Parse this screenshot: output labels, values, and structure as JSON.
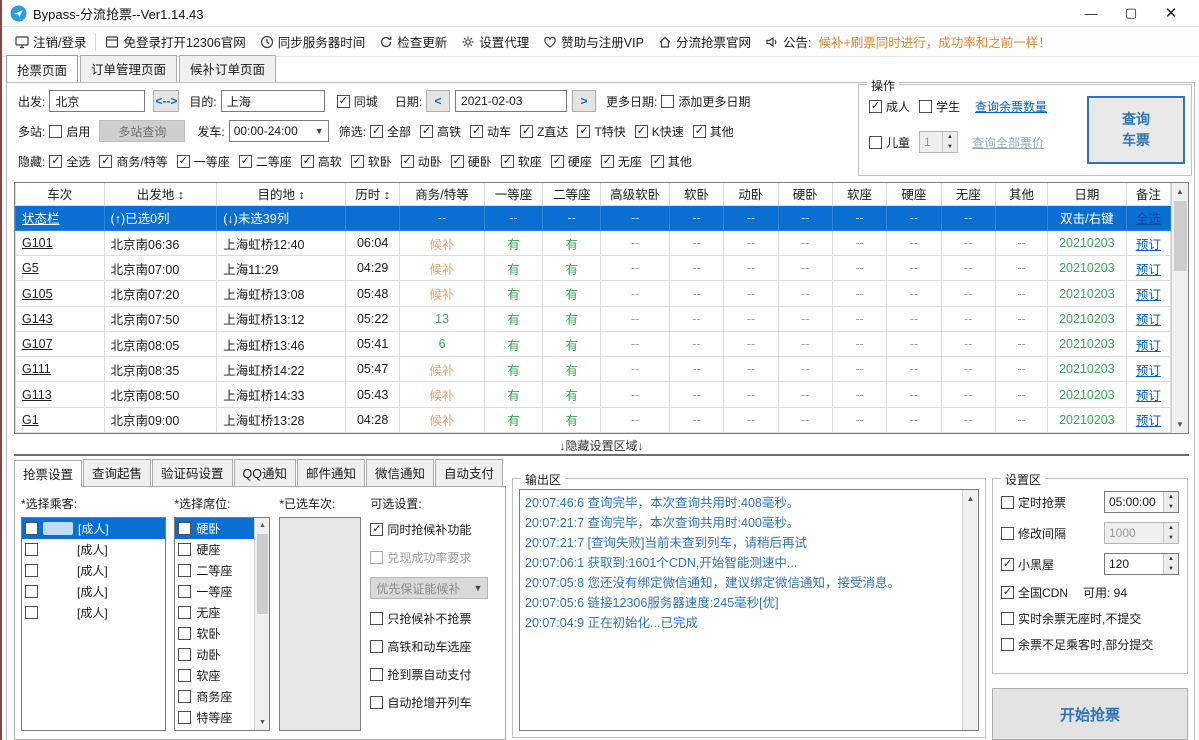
{
  "window": {
    "title": "Bypass-分流抢票--Ver1.14.43"
  },
  "toolbar": {
    "items": [
      {
        "label": "注销/登录",
        "icon": "monitor-icon"
      },
      {
        "label": "免登录打开12306官网",
        "icon": "window-icon"
      },
      {
        "label": "同步服务器时间",
        "icon": "clock-icon"
      },
      {
        "label": "检查更新",
        "icon": "refresh-icon"
      },
      {
        "label": "设置代理",
        "icon": "gear-icon"
      },
      {
        "label": "赞助与注册VIP",
        "icon": "heart-icon"
      },
      {
        "label": "分流抢票官网",
        "icon": "home-icon"
      },
      {
        "label": "公告:",
        "icon": "speaker-icon"
      }
    ],
    "announcement": "候补+刷票同时进行，成功率和之前一样！",
    "announcement_color": "#e8842c"
  },
  "main_tabs": [
    {
      "label": "抢票页面",
      "active": true
    },
    {
      "label": "订单管理页面",
      "active": false
    },
    {
      "label": "候补订单页面",
      "active": false
    }
  ],
  "query": {
    "depart_label": "出发:",
    "depart_value": "北京",
    "swap_label": "<-->",
    "dest_label": "目的:",
    "dest_value": "上海",
    "same_city": {
      "label": "同城",
      "checked": true
    },
    "date_label": "日期:",
    "prev": "<",
    "date_value": "2021-02-03",
    "next": ">",
    "more_dates_label": "更多日期:",
    "add_more_dates": {
      "label": "添加更多日期",
      "checked": false
    },
    "multi_label": "多站:",
    "enable": {
      "label": "启用",
      "checked": false
    },
    "multi_btn": "多站查询",
    "depart_time_label": "发车:",
    "depart_time_value": "00:00-24:00",
    "filter_label": "筛选:",
    "filters": [
      {
        "label": "全部",
        "checked": true
      },
      {
        "label": "高铁",
        "checked": true
      },
      {
        "label": "动车",
        "checked": true
      },
      {
        "label": "Z直达",
        "checked": true
      },
      {
        "label": "T特快",
        "checked": true
      },
      {
        "label": "K快速",
        "checked": true
      },
      {
        "label": "其他",
        "checked": true
      }
    ],
    "hide_label": "隐藏:",
    "hide": [
      {
        "label": "全选",
        "checked": true
      },
      {
        "label": "商务/特等",
        "checked": true
      },
      {
        "label": "一等座",
        "checked": true
      },
      {
        "label": "二等座",
        "checked": true
      },
      {
        "label": "高软",
        "checked": true
      },
      {
        "label": "软卧",
        "checked": true
      },
      {
        "label": "动卧",
        "checked": true
      },
      {
        "label": "硬卧",
        "checked": true
      },
      {
        "label": "软座",
        "checked": true
      },
      {
        "label": "硬座",
        "checked": true
      },
      {
        "label": "无座",
        "checked": true
      },
      {
        "label": "其他",
        "checked": true
      }
    ]
  },
  "operation": {
    "title": "操作",
    "adult": {
      "label": "成人",
      "checked": true
    },
    "student": {
      "label": "学生",
      "checked": false
    },
    "child": {
      "label": "儿童",
      "checked": false
    },
    "child_count": "1",
    "link_tickets": "查询余票数量",
    "link_prices": "查询全部票价",
    "query_button_line1": "查询",
    "query_button_line2": "车票"
  },
  "train_table": {
    "headers": [
      "车次",
      "出发地 ↕",
      "目的地 ↕",
      "历时 ↕",
      "商务/特等",
      "一等座",
      "二等座",
      "高级软卧",
      "软卧",
      "动卧",
      "硬卧",
      "软座",
      "硬座",
      "无座",
      "其他",
      "日期",
      "备注"
    ],
    "status_row": [
      "状态栏",
      "(↑)已选0列",
      "(↓)未选39列",
      "",
      "--",
      "--",
      "--",
      "--",
      "--",
      "--",
      "--",
      "--",
      "--",
      "--",
      "",
      "双击/右键",
      "全选"
    ],
    "rows": [
      [
        "G101",
        "北京南06:36",
        "上海虹桥12:40",
        "06:04",
        "候补",
        "有",
        "有",
        "--",
        "--",
        "--",
        "--",
        "--",
        "--",
        "--",
        "--",
        "20210203",
        "预订"
      ],
      [
        "G5",
        "北京南07:00",
        "上海11:29",
        "04:29",
        "候补",
        "有",
        "有",
        "--",
        "--",
        "--",
        "--",
        "--",
        "--",
        "--",
        "--",
        "20210203",
        "预订"
      ],
      [
        "G105",
        "北京南07:20",
        "上海虹桥13:08",
        "05:48",
        "候补",
        "有",
        "有",
        "--",
        "--",
        "--",
        "--",
        "--",
        "--",
        "--",
        "--",
        "20210203",
        "预订"
      ],
      [
        "G143",
        "北京南07:50",
        "上海虹桥13:12",
        "05:22",
        "13",
        "有",
        "有",
        "--",
        "--",
        "--",
        "--",
        "--",
        "--",
        "--",
        "--",
        "20210203",
        "预订"
      ],
      [
        "G107",
        "北京南08:05",
        "上海虹桥13:46",
        "05:41",
        "6",
        "有",
        "有",
        "--",
        "--",
        "--",
        "--",
        "--",
        "--",
        "--",
        "--",
        "20210203",
        "预订"
      ],
      [
        "G111",
        "北京南08:35",
        "上海虹桥14:22",
        "05:47",
        "候补",
        "有",
        "有",
        "--",
        "--",
        "--",
        "--",
        "--",
        "--",
        "--",
        "--",
        "20210203",
        "预订"
      ],
      [
        "G113",
        "北京南08:50",
        "上海虹桥14:33",
        "05:43",
        "候补",
        "有",
        "有",
        "--",
        "--",
        "--",
        "--",
        "--",
        "--",
        "--",
        "--",
        "20210203",
        "预订"
      ],
      [
        "G1",
        "北京南09:00",
        "上海虹桥13:28",
        "04:28",
        "候补",
        "有",
        "有",
        "--",
        "--",
        "--",
        "--",
        "--",
        "--",
        "--",
        "--",
        "20210203",
        "预订"
      ]
    ]
  },
  "divider_text": "↓隐藏设置区域↓",
  "bottom_tabs": [
    {
      "label": "抢票设置",
      "active": true
    },
    {
      "label": "查询起售",
      "active": false
    },
    {
      "label": "验证码设置",
      "active": false
    },
    {
      "label": "QQ通知",
      "active": false
    },
    {
      "label": "邮件通知",
      "active": false
    },
    {
      "label": "微信通知",
      "active": false
    },
    {
      "label": "自动支付",
      "active": false
    }
  ],
  "grab": {
    "passengers_label": "*选择乘客:",
    "passengers": [
      {
        "tag": "[成人]",
        "selected": true
      },
      {
        "tag": "[成人]",
        "selected": false
      },
      {
        "tag": "[成人]",
        "selected": false
      },
      {
        "tag": "[成人]",
        "selected": false
      },
      {
        "tag": "[成人]",
        "selected": false
      }
    ],
    "seats_label": "*选择席位:",
    "seats": [
      {
        "label": "硬卧",
        "selected": true
      },
      {
        "label": "硬座",
        "selected": false
      },
      {
        "label": "二等座",
        "selected": false
      },
      {
        "label": "一等座",
        "selected": false
      },
      {
        "label": "无座",
        "selected": false
      },
      {
        "label": "软卧",
        "selected": false
      },
      {
        "label": "动卧",
        "selected": false
      },
      {
        "label": "软座",
        "selected": false
      },
      {
        "label": "商务座",
        "selected": false
      },
      {
        "label": "特等座",
        "selected": false
      }
    ],
    "selected_trains_label": "*已选车次:",
    "options_label": "可选设置:",
    "opt_candidate": {
      "label": "同时抢候补功能",
      "checked": true
    },
    "opt_rate": {
      "label": "兑现成功率要求",
      "checked": false
    },
    "opt_priority_dd": "优先保证能候补",
    "opt_only_candidate": {
      "label": "只抢候补不抢票",
      "checked": false
    },
    "opt_choose_seat": {
      "label": "高铁和动车选座",
      "checked": false
    },
    "opt_autopay": {
      "label": "抢到票自动支付",
      "checked": false
    },
    "opt_extra_train": {
      "label": "自动抢增开列车",
      "checked": false
    }
  },
  "output": {
    "title": "输出区",
    "logs": [
      {
        "time": "20:07:46:6",
        "msg": "查询完毕，本次查询共用时:408毫秒。"
      },
      {
        "time": "20:07:21:7",
        "msg": "查询完毕，本次查询共用时:400毫秒。"
      },
      {
        "time": "20:07:21:7",
        "msg": "[查询失败]当前未查到列车，请稍后再试"
      },
      {
        "time": "20:07:06:1",
        "msg": "获取到:1601个CDN,开始智能测速中..."
      },
      {
        "time": "20:07:05:8",
        "msg": "您还没有绑定微信通知，建议绑定微信通知，接受消息。"
      },
      {
        "time": "20:07:05:6",
        "msg": "链接12306服务器速度:245毫秒[优]"
      },
      {
        "time": "20:07:04:9",
        "msg": "正在初始化...已完成"
      }
    ]
  },
  "settings": {
    "title": "设置区",
    "timed": {
      "label": "定时抢票",
      "checked": false,
      "value": "05:00:00"
    },
    "interval": {
      "label": "修改间隔",
      "checked": false,
      "value": "1000"
    },
    "blackroom": {
      "label": "小黑屋",
      "checked": true,
      "value": "120"
    },
    "cdn": {
      "label": "全国CDN",
      "checked": true,
      "avail_label": "可用: 94"
    },
    "no_seat": {
      "label": "实时余票无座时,不提交",
      "checked": false
    },
    "partial": {
      "label": "余票不足乘客时,部分提交",
      "checked": false
    },
    "start_button": "开始抢票"
  },
  "colors": {
    "accent_blue": "#0a6fd3",
    "link_blue": "#0563c1",
    "reserve_orange": "#efa06b",
    "avail_green": "#3aa557",
    "log_blue": "#2e74b5"
  }
}
